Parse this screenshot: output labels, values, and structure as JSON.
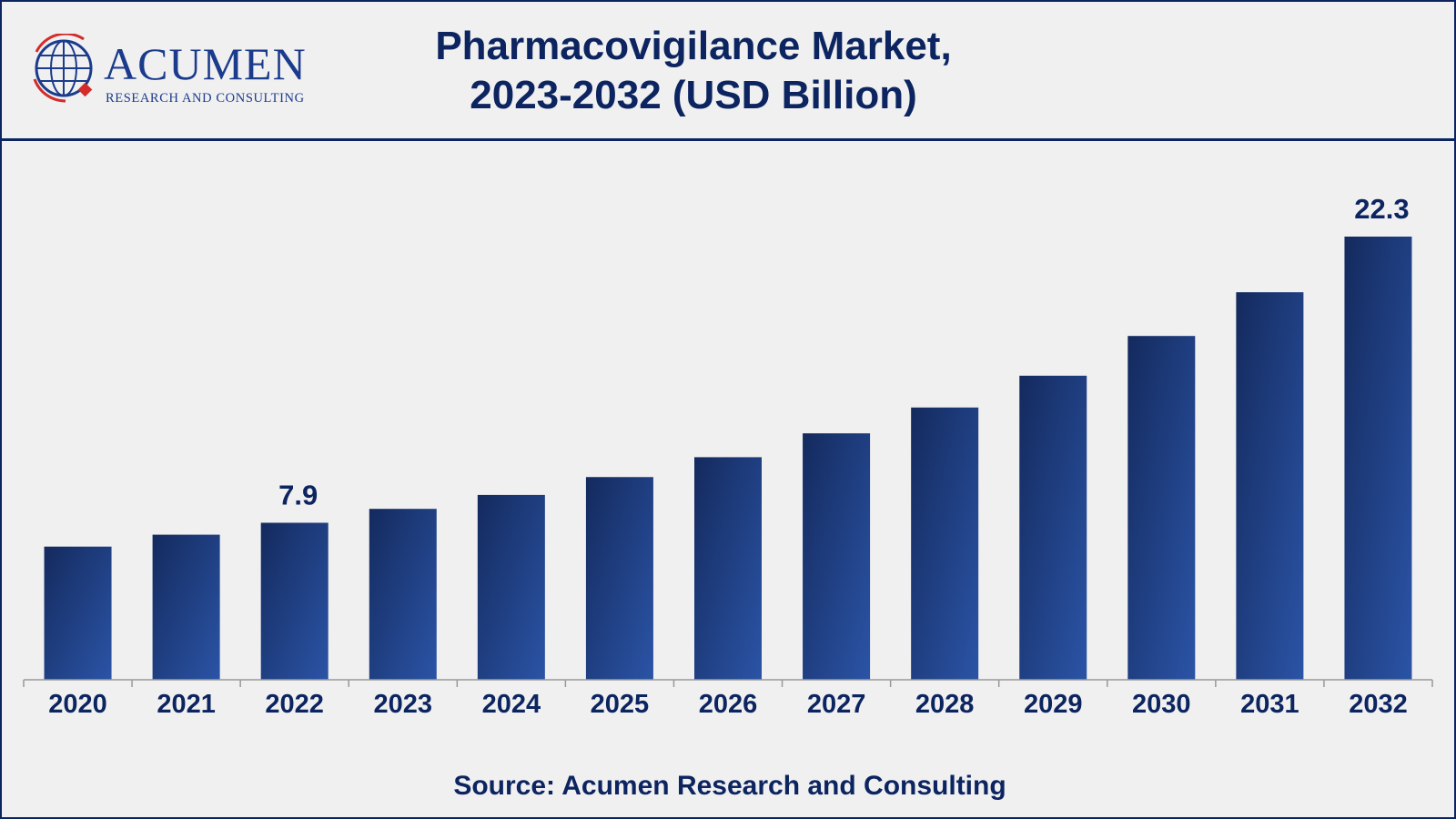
{
  "logo": {
    "word": "ACUMEN",
    "subtitle": "RESEARCH AND CONSULTING"
  },
  "title_lines": [
    "Pharmacovigilance Market,",
    "2023-2032 (USD Billion)"
  ],
  "source": "Source: Acumen Research and Consulting",
  "colors": {
    "bar_dark": "#142a5e",
    "bar_light": "#2b54a6",
    "text": "#0c2460",
    "border": "#0c2460"
  },
  "chart_data": {
    "type": "bar",
    "title": "Pharmacovigilance Market, 2023-2032 (USD Billion)",
    "xlabel": "",
    "ylabel": "",
    "categories": [
      "2020",
      "2021",
      "2022",
      "2023",
      "2024",
      "2025",
      "2026",
      "2027",
      "2028",
      "2029",
      "2030",
      "2031",
      "2032"
    ],
    "values": [
      6.7,
      7.3,
      7.9,
      8.6,
      9.3,
      10.2,
      11.2,
      12.4,
      13.7,
      15.3,
      17.3,
      19.5,
      22.3
    ],
    "data_labels": [
      {
        "index": 2,
        "text": "7.9"
      },
      {
        "index": 12,
        "text": "22.3"
      }
    ],
    "ylim": [
      0,
      24
    ],
    "grid": false,
    "legend": "none"
  }
}
